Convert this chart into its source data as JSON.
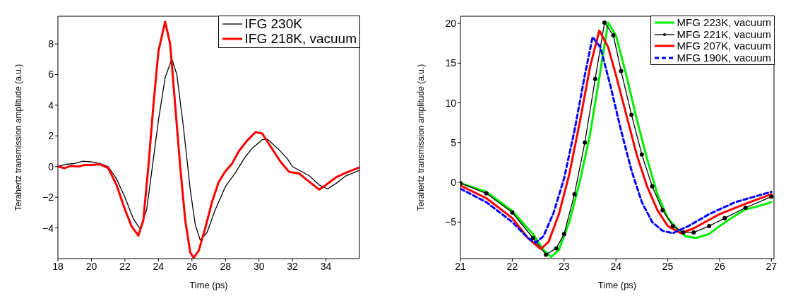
{
  "chart_data": [
    {
      "type": "line",
      "xlabel": "Time (ps)",
      "ylabel": "Terahertz transmission amplitude (a.u.)",
      "xlim": [
        18,
        36
      ],
      "xticks": [
        18,
        20,
        22,
        24,
        26,
        28,
        30,
        32,
        34
      ],
      "ylim": [
        -6,
        9.8
      ],
      "yticks": [
        -4,
        -2,
        0,
        2,
        4,
        6,
        8
      ],
      "grid": false,
      "legend": "top right",
      "series": [
        {
          "name": "IFG 230K",
          "color": "#000000",
          "x": [
            18,
            18.5,
            19,
            19.5,
            20,
            20.5,
            21,
            21.5,
            22,
            22.5,
            22.9,
            23.3,
            23.7,
            24,
            24.4,
            24.8,
            25.1,
            25.5,
            25.9,
            26.2,
            26.5,
            26.9,
            27.4,
            28,
            28.6,
            29.1,
            29.6,
            30.2,
            30.5,
            31.2,
            31.7,
            32,
            32.5,
            33,
            33.6,
            34.1,
            34.6,
            35.2,
            36
          ],
          "values": [
            0,
            0.15,
            0.2,
            0.35,
            0.3,
            0.2,
            0,
            -0.8,
            -2,
            -3.4,
            -4.05,
            -2.8,
            0.5,
            3,
            5.8,
            7,
            6,
            2.5,
            -1.5,
            -3.8,
            -4.8,
            -4.3,
            -2.8,
            -1.3,
            -0.4,
            0.5,
            1.2,
            1.75,
            1.8,
            1.1,
            0.5,
            0,
            -0.3,
            -0.6,
            -1.2,
            -1.45,
            -1.1,
            -0.6,
            -0.25
          ]
        },
        {
          "name": "IFG 218K, vacuum",
          "color": "#ff0000",
          "x": [
            18,
            18.4,
            18.8,
            19.2,
            19.6,
            20,
            20.5,
            21,
            21.5,
            22,
            22.4,
            22.8,
            23.1,
            23.4,
            23.7,
            24,
            24.4,
            24.7,
            25,
            25.3,
            25.6,
            25.9,
            26.1,
            26.4,
            26.8,
            27.2,
            27.6,
            28,
            28.4,
            28.8,
            29.3,
            29.8,
            30.2,
            30.7,
            31.3,
            31.8,
            32.4,
            32.9,
            33.6,
            34,
            34.6,
            35.2,
            36
          ],
          "values": [
            0,
            -0.1,
            0.05,
            0,
            0.1,
            0.1,
            0.15,
            -0.1,
            -1.2,
            -2.8,
            -3.9,
            -4.5,
            -3.5,
            0,
            4,
            7.5,
            9.45,
            8,
            4,
            0,
            -3.5,
            -5.6,
            -5.95,
            -5.5,
            -4,
            -2.3,
            -1,
            -0.3,
            0.2,
            1,
            1.7,
            2.25,
            2.15,
            1.3,
            0.3,
            -0.35,
            -0.45,
            -0.9,
            -1.5,
            -1.2,
            -0.7,
            -0.4,
            -0.05
          ]
        }
      ]
    },
    {
      "type": "line",
      "xlabel": "Time (ps)",
      "ylabel": "Terahertz transmission amplitude (a.u.)",
      "xlim": [
        21,
        27.05
      ],
      "xticks": [
        21,
        22,
        23,
        24,
        25,
        26,
        27
      ],
      "ylim": [
        -9.6,
        20.9
      ],
      "yticks": [
        -5,
        0,
        5,
        10,
        15,
        20
      ],
      "grid": false,
      "legend": "top right",
      "series": [
        {
          "name": "MFG 223K, vacuum",
          "color": "#00ee00",
          "x": [
            21,
            21.5,
            22,
            22.4,
            22.6,
            22.75,
            22.9,
            23.1,
            23.3,
            23.5,
            23.7,
            23.85,
            24,
            24.2,
            24.4,
            24.6,
            24.8,
            25,
            25.2,
            25.35,
            25.55,
            25.8,
            26,
            26.3,
            26.5,
            26.7,
            27
          ],
          "values": [
            -0.1,
            -1.2,
            -3.6,
            -6.5,
            -8.5,
            -9.4,
            -8.5,
            -5,
            0,
            6,
            14,
            20.1,
            18.5,
            13.5,
            8,
            3,
            -1.5,
            -4.5,
            -6,
            -6.8,
            -7,
            -6.5,
            -5.5,
            -4.2,
            -3.4,
            -3.1,
            -2.5
          ]
        },
        {
          "name": "MFG 221K, vacuum",
          "color": "#000000",
          "marker": "circle",
          "x": [
            21,
            21.5,
            22,
            22.4,
            22.65,
            22.85,
            23,
            23.2,
            23.4,
            23.6,
            23.78,
            23.95,
            24.1,
            24.3,
            24.5,
            24.7,
            24.9,
            25.1,
            25.3,
            25.5,
            25.8,
            26.1,
            26.5,
            27
          ],
          "values": [
            -0.1,
            -1.4,
            -3.8,
            -7,
            -9.1,
            -8.3,
            -6.5,
            -1.5,
            5,
            13,
            20.1,
            18.5,
            14,
            8.5,
            3.5,
            -0.5,
            -3.5,
            -5.5,
            -6.3,
            -6.3,
            -5.5,
            -4.5,
            -3.2,
            -1.8
          ]
        },
        {
          "name": "MFG 207K, vacuum",
          "color": "#ff0000",
          "x": [
            21,
            21.5,
            22,
            22.3,
            22.55,
            22.7,
            22.9,
            23.1,
            23.3,
            23.5,
            23.68,
            23.85,
            24,
            24.2,
            24.4,
            24.6,
            24.8,
            25,
            25.25,
            25.5,
            26,
            26.5,
            27
          ],
          "values": [
            -0.4,
            -2,
            -4.5,
            -7,
            -8.4,
            -7.5,
            -4,
            1,
            7.5,
            14.5,
            19.1,
            17,
            13.5,
            8.5,
            3.5,
            -0.5,
            -3.5,
            -5.5,
            -6.4,
            -5.8,
            -4,
            -2.7,
            -1.5
          ]
        },
        {
          "name": "MFG 190K, vacuum",
          "color": "#0000ff",
          "line_style": "dashed",
          "x": [
            21,
            21.5,
            22,
            22.3,
            22.45,
            22.6,
            22.8,
            23,
            23.2,
            23.4,
            23.55,
            23.7,
            23.9,
            24.1,
            24.3,
            24.5,
            24.7,
            24.9,
            25.1,
            25.4,
            25.8,
            26.3,
            27
          ],
          "values": [
            -0.8,
            -2.5,
            -5,
            -7,
            -7.6,
            -6.8,
            -3.8,
            0.5,
            6.5,
            13.5,
            18.3,
            17,
            12,
            6.5,
            1.5,
            -2.5,
            -5,
            -6.1,
            -6.4,
            -5.5,
            -4,
            -2.5,
            -1.2
          ]
        }
      ]
    }
  ]
}
